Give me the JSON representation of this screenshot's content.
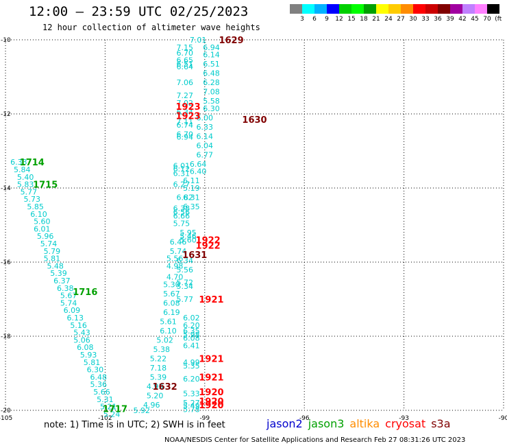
{
  "header": {
    "title": "12:00 — 23:59 UTC 02/25/2023",
    "subtitle": "12 hour collection of altimeter wave heights"
  },
  "colorbar": {
    "labels": [
      "3",
      "6",
      "9",
      "12",
      "15",
      "18",
      "21",
      "24",
      "27",
      "30",
      "33",
      "36",
      "39",
      "42",
      "45",
      "70",
      "(ft)"
    ],
    "colors": [
      "#808080",
      "#00ffff",
      "#00b2ff",
      "#0000ff",
      "#00d000",
      "#00ff00",
      "#00a000",
      "#ffff00",
      "#ffcc00",
      "#ff8c00",
      "#ff0000",
      "#cc0000",
      "#800000",
      "#a000a0",
      "#c080ff",
      "#ff80ff",
      "#000000"
    ]
  },
  "footer": {
    "note": "note:  1) Time is in UTC;  2) SWH is in feet",
    "credit": "NOAA/NESDIS Center for Satellite Applications and Research     Feb 27 08:31:26 UTC 2023"
  },
  "legend": [
    {
      "name": "jason2",
      "color": "#0000cc"
    },
    {
      "name": "jason3",
      "color": "#00a000"
    },
    {
      "name": "altika",
      "color": "#ff8c00"
    },
    {
      "name": "cryosat",
      "color": "#ff0000"
    },
    {
      "name": "s3a",
      "color": "#800000"
    }
  ],
  "chart_data": {
    "type": "scatter",
    "title": "12:00 — 23:59 UTC 02/25/2023",
    "subtitle": "12 hour collection of altimeter wave heights",
    "xlim": [
      -105,
      -90
    ],
    "ylim": [
      -20,
      -10
    ],
    "x_ticks": [
      "-105",
      "-102",
      "-99",
      "-96",
      "-93",
      "-90"
    ],
    "y_ticks": [
      "-10",
      "-12",
      "-14",
      "-16",
      "-18",
      "-20"
    ],
    "grid": true,
    "wave_heights_ft": [
      {
        "x": -99.2,
        "y": -10.0,
        "v": "7.01"
      },
      {
        "x": -99.6,
        "y": -10.2,
        "v": "7.15"
      },
      {
        "x": -98.8,
        "y": -10.2,
        "v": "6.94"
      },
      {
        "x": -99.6,
        "y": -10.35,
        "v": "6.70"
      },
      {
        "x": -98.8,
        "y": -10.4,
        "v": "6.14"
      },
      {
        "x": -99.6,
        "y": -10.55,
        "v": "6.65"
      },
      {
        "x": -98.8,
        "y": -10.65,
        "v": "6.51"
      },
      {
        "x": -99.6,
        "y": -10.65,
        "v": "6.51"
      },
      {
        "x": -99.6,
        "y": -10.72,
        "v": "6.64"
      },
      {
        "x": -98.8,
        "y": -10.9,
        "v": "6.48"
      },
      {
        "x": -99.6,
        "y": -11.15,
        "v": "7.06"
      },
      {
        "x": -98.8,
        "y": -11.15,
        "v": "6.28"
      },
      {
        "x": -98.8,
        "y": -11.4,
        "v": "7.08"
      },
      {
        "x": -99.6,
        "y": -11.5,
        "v": "7.27"
      },
      {
        "x": -98.8,
        "y": -11.65,
        "v": "5.58"
      },
      {
        "x": -99.6,
        "y": -11.7,
        "v": "7.02"
      },
      {
        "x": -98.8,
        "y": -11.85,
        "v": "6.30"
      },
      {
        "x": -99.6,
        "y": -11.95,
        "v": "6.34"
      },
      {
        "x": -99.0,
        "y": -12.1,
        "v": "6.00"
      },
      {
        "x": -99.6,
        "y": -12.2,
        "v": "7.11"
      },
      {
        "x": -99.6,
        "y": -12.3,
        "v": "6.74"
      },
      {
        "x": -99.0,
        "y": -12.35,
        "v": "6.33"
      },
      {
        "x": -99.6,
        "y": -12.55,
        "v": "6.70"
      },
      {
        "x": -99.6,
        "y": -12.62,
        "v": "6.94"
      },
      {
        "x": -99.0,
        "y": -12.6,
        "v": "6.14"
      },
      {
        "x": -99.0,
        "y": -12.85,
        "v": "6.04"
      },
      {
        "x": -99.0,
        "y": -13.1,
        "v": "6.77"
      },
      {
        "x": -99.2,
        "y": -13.35,
        "v": "6.64"
      },
      {
        "x": -99.7,
        "y": -13.4,
        "v": "6.01"
      },
      {
        "x": -99.7,
        "y": -13.48,
        "v": "6.12"
      },
      {
        "x": -99.2,
        "y": -13.55,
        "v": "6.40"
      },
      {
        "x": -99.7,
        "y": -13.6,
        "v": "6.31"
      },
      {
        "x": -99.4,
        "y": -13.8,
        "v": "6.11"
      },
      {
        "x": -99.7,
        "y": -13.9,
        "v": "6.27"
      },
      {
        "x": -99.4,
        "y": -14.0,
        "v": "5.19"
      },
      {
        "x": -99.6,
        "y": -14.25,
        "v": "6.82"
      },
      {
        "x": -99.4,
        "y": -14.25,
        "v": "6.31"
      },
      {
        "x": -99.4,
        "y": -14.5,
        "v": "6.35"
      },
      {
        "x": -99.7,
        "y": -14.55,
        "v": "6.38"
      },
      {
        "x": -99.7,
        "y": -14.65,
        "v": "6.56"
      },
      {
        "x": -99.7,
        "y": -14.75,
        "v": "6.66"
      },
      {
        "x": -99.7,
        "y": -14.95,
        "v": "5.75"
      },
      {
        "x": -99.5,
        "y": -15.2,
        "v": "5.95"
      },
      {
        "x": -99.5,
        "y": -15.3,
        "v": "5.46"
      },
      {
        "x": -99.5,
        "y": -15.4,
        "v": "5.60"
      },
      {
        "x": -99.8,
        "y": -15.45,
        "v": "6.46"
      },
      {
        "x": -99.8,
        "y": -15.7,
        "v": "5.74"
      },
      {
        "x": -99.6,
        "y": -15.95,
        "v": "6.34"
      },
      {
        "x": -99.9,
        "y": -15.9,
        "v": "5.56"
      },
      {
        "x": -99.9,
        "y": -16.1,
        "v": "4.98"
      },
      {
        "x": -99.6,
        "y": -16.2,
        "v": "5.56"
      },
      {
        "x": -99.9,
        "y": -16.4,
        "v": "4.70"
      },
      {
        "x": -99.6,
        "y": -16.55,
        "v": "5.72"
      },
      {
        "x": -100.0,
        "y": -16.6,
        "v": "5.30"
      },
      {
        "x": -99.6,
        "y": -16.65,
        "v": "5.34"
      },
      {
        "x": -100.0,
        "y": -16.85,
        "v": "5.67"
      },
      {
        "x": -99.6,
        "y": -17.0,
        "v": "5.77"
      },
      {
        "x": -100.0,
        "y": -17.1,
        "v": "6.08"
      },
      {
        "x": -100.0,
        "y": -17.35,
        "v": "6.19"
      },
      {
        "x": -99.4,
        "y": -17.5,
        "v": "6.02"
      },
      {
        "x": -100.1,
        "y": -17.6,
        "v": "5.61"
      },
      {
        "x": -99.4,
        "y": -17.7,
        "v": "6.20"
      },
      {
        "x": -99.4,
        "y": -17.85,
        "v": "6.35"
      },
      {
        "x": -100.1,
        "y": -17.85,
        "v": "6.10"
      },
      {
        "x": -99.4,
        "y": -17.95,
        "v": "5.98"
      },
      {
        "x": -99.4,
        "y": -18.05,
        "v": "6.08"
      },
      {
        "x": -100.2,
        "y": -18.1,
        "v": "5.02"
      },
      {
        "x": -99.4,
        "y": -18.25,
        "v": "6.41"
      },
      {
        "x": -100.3,
        "y": -18.35,
        "v": "5.38"
      },
      {
        "x": -100.4,
        "y": -18.6,
        "v": "5.22"
      },
      {
        "x": -99.4,
        "y": -18.7,
        "v": "4.99"
      },
      {
        "x": -99.4,
        "y": -18.8,
        "v": "5.35"
      },
      {
        "x": -100.4,
        "y": -18.85,
        "v": "7.18"
      },
      {
        "x": -100.4,
        "y": -19.1,
        "v": "5.39"
      },
      {
        "x": -99.4,
        "y": -19.15,
        "v": "6.20"
      },
      {
        "x": -100.5,
        "y": -19.35,
        "v": "4.93"
      },
      {
        "x": -100.5,
        "y": -19.6,
        "v": "5.20"
      },
      {
        "x": -99.4,
        "y": -19.55,
        "v": "5.33"
      },
      {
        "x": -99.4,
        "y": -19.8,
        "v": "5.27"
      },
      {
        "x": -99.4,
        "y": -19.88,
        "v": "5.49"
      },
      {
        "x": -100.6,
        "y": -19.85,
        "v": "4.96"
      },
      {
        "x": -99.4,
        "y": -19.97,
        "v": "5.78"
      },
      {
        "x": -100.9,
        "y": -20.0,
        "v": "5.92"
      },
      {
        "x": -104.6,
        "y": -13.3,
        "v": "6.33"
      },
      {
        "x": -104.5,
        "y": -13.5,
        "v": "5.84"
      },
      {
        "x": -104.4,
        "y": -13.7,
        "v": "5.40"
      },
      {
        "x": -104.4,
        "y": -13.9,
        "v": "5.83"
      },
      {
        "x": -104.3,
        "y": -14.1,
        "v": "5.77"
      },
      {
        "x": -104.2,
        "y": -14.3,
        "v": "5.73"
      },
      {
        "x": -104.1,
        "y": -14.5,
        "v": "5.85"
      },
      {
        "x": -104.0,
        "y": -14.7,
        "v": "6.10"
      },
      {
        "x": -103.9,
        "y": -14.9,
        "v": "5.60"
      },
      {
        "x": -103.9,
        "y": -15.1,
        "v": "6.01"
      },
      {
        "x": -103.8,
        "y": -15.3,
        "v": "5.96"
      },
      {
        "x": -103.7,
        "y": -15.5,
        "v": "5.74"
      },
      {
        "x": -103.6,
        "y": -15.7,
        "v": "5.79"
      },
      {
        "x": -103.6,
        "y": -15.9,
        "v": "5.81"
      },
      {
        "x": -103.5,
        "y": -16.1,
        "v": "5.48"
      },
      {
        "x": -103.4,
        "y": -16.3,
        "v": "5.39"
      },
      {
        "x": -103.3,
        "y": -16.5,
        "v": "6.37"
      },
      {
        "x": -103.2,
        "y": -16.7,
        "v": "6.38"
      },
      {
        "x": -103.1,
        "y": -16.9,
        "v": "5.67"
      },
      {
        "x": -103.1,
        "y": -17.1,
        "v": "5.74"
      },
      {
        "x": -103.0,
        "y": -17.3,
        "v": "6.09"
      },
      {
        "x": -102.9,
        "y": -17.5,
        "v": "6.13"
      },
      {
        "x": -102.8,
        "y": -17.7,
        "v": "5.16"
      },
      {
        "x": -102.7,
        "y": -17.9,
        "v": "5.43"
      },
      {
        "x": -102.7,
        "y": -18.1,
        "v": "5.06"
      },
      {
        "x": -102.6,
        "y": -18.3,
        "v": "6.08"
      },
      {
        "x": -102.5,
        "y": -18.5,
        "v": "5.93"
      },
      {
        "x": -102.4,
        "y": -18.7,
        "v": "5.81"
      },
      {
        "x": -102.3,
        "y": -18.9,
        "v": "6.30"
      },
      {
        "x": -102.2,
        "y": -19.1,
        "v": "6.48"
      },
      {
        "x": -102.2,
        "y": -19.3,
        "v": "5.36"
      },
      {
        "x": -102.1,
        "y": -19.5,
        "v": "5.66"
      },
      {
        "x": -102.0,
        "y": -19.7,
        "v": "5.31"
      },
      {
        "x": -101.9,
        "y": -19.9,
        "v": "5.21"
      },
      {
        "x": -101.8,
        "y": -20.1,
        "v": "5.24"
      }
    ],
    "pass_labels": [
      {
        "x": -98.2,
        "y": -10.0,
        "text": "1629",
        "color": "#800000"
      },
      {
        "x": -99.5,
        "y": -11.8,
        "text": "1923",
        "color": "#ff0000"
      },
      {
        "x": -99.5,
        "y": -12.05,
        "text": "1923",
        "color": "#ff0000"
      },
      {
        "x": -97.5,
        "y": -12.15,
        "text": "1630",
        "color": "#800000"
      },
      {
        "x": -104.2,
        "y": -13.3,
        "text": "1714",
        "color": "#00a000"
      },
      {
        "x": -103.8,
        "y": -13.9,
        "text": "1715",
        "color": "#00a000"
      },
      {
        "x": -98.9,
        "y": -15.4,
        "text": "1922",
        "color": "#ff0000"
      },
      {
        "x": -98.9,
        "y": -15.55,
        "text": "1922",
        "color": "#ff0000"
      },
      {
        "x": -99.3,
        "y": -15.8,
        "text": "1631",
        "color": "#800000"
      },
      {
        "x": -102.6,
        "y": -16.8,
        "text": "1716",
        "color": "#00a000"
      },
      {
        "x": -98.8,
        "y": -17.0,
        "text": "1921",
        "color": "#ff0000"
      },
      {
        "x": -98.8,
        "y": -18.6,
        "text": "1921",
        "color": "#ff0000"
      },
      {
        "x": -98.8,
        "y": -19.1,
        "text": "1921",
        "color": "#ff0000"
      },
      {
        "x": -100.2,
        "y": -19.35,
        "text": "1632",
        "color": "#800000"
      },
      {
        "x": -98.8,
        "y": -19.5,
        "text": "1920",
        "color": "#ff0000"
      },
      {
        "x": -98.8,
        "y": -19.75,
        "text": "1920",
        "color": "#ff0000"
      },
      {
        "x": -98.8,
        "y": -19.85,
        "text": "1920",
        "color": "#ff0000"
      },
      {
        "x": -101.7,
        "y": -19.95,
        "text": "1717",
        "color": "#00a000"
      }
    ]
  }
}
